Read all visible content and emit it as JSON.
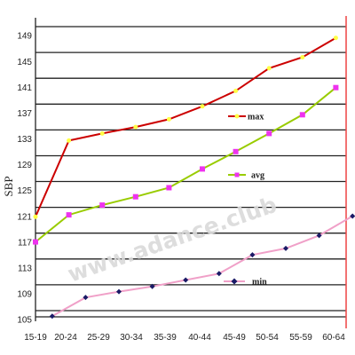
{
  "watermark": "www.adance.club",
  "chart_data": {
    "type": "line",
    "categories": [
      "15-19",
      "20-24",
      "25-29",
      "30-34",
      "35-39",
      "40-44",
      "45-49",
      "50-54",
      "55-59",
      "60-64"
    ],
    "ylabel": "SBP",
    "xlabel": "",
    "ylim": [
      104,
      151
    ],
    "yticks": [
      105,
      109,
      113,
      117,
      121,
      125,
      129,
      133,
      137,
      141,
      145,
      149
    ],
    "grid": true,
    "legend_position": "inside-right",
    "series": [
      {
        "name": "max",
        "line_color": "#cc0000",
        "marker_color": "#ffff44",
        "marker": "circle",
        "x_offset": 0,
        "values": [
          120.5,
          132.3,
          133.4,
          134.4,
          135.6,
          137.6,
          140.0,
          143.5,
          145.2,
          148.2
        ]
      },
      {
        "name": "avg",
        "line_color": "#99cc00",
        "marker_color": "#ee33ee",
        "marker": "square",
        "x_offset": 0,
        "values": [
          116.6,
          120.8,
          122.3,
          123.6,
          125.0,
          127.9,
          130.6,
          133.4,
          136.3,
          140.5
        ]
      },
      {
        "name": "min",
        "line_color": "#f0a0c8",
        "marker_color": "#1a1a66",
        "marker": "diamond",
        "x_offset": 0.5,
        "values": [
          105.1,
          108.0,
          108.9,
          109.7,
          110.7,
          111.7,
          114.6,
          115.6,
          117.6,
          120.6
        ]
      }
    ]
  }
}
